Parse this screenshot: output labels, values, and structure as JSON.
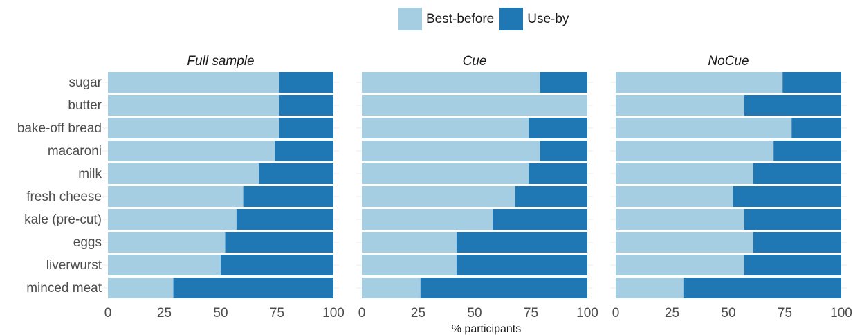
{
  "chart_data": {
    "type": "bar",
    "stacked": true,
    "orientation": "horizontal",
    "xlabel": "% participants",
    "xlim": [
      0,
      100
    ],
    "xticks": [
      "0",
      "25",
      "50",
      "75",
      "100"
    ],
    "legend": {
      "placement": "top",
      "entries": [
        {
          "name": "Best-before",
          "color": "#a6cee3"
        },
        {
          "name": "Use-by",
          "color": "#1f78b4"
        }
      ]
    },
    "categories": [
      "sugar",
      "butter",
      "bake-off bread",
      "macaroni",
      "milk",
      "fresh cheese",
      "kale (pre-cut)",
      "eggs",
      "liverwurst",
      "minced meat"
    ],
    "panels": [
      {
        "title": "Full sample",
        "series": [
          {
            "name": "Best-before",
            "values": [
              76,
              76,
              76,
              74,
              67,
              60,
              57,
              52,
              50,
              29
            ]
          },
          {
            "name": "Use-by",
            "values": [
              24,
              24,
              24,
              26,
              33,
              40,
              43,
              48,
              50,
              71
            ]
          }
        ]
      },
      {
        "title": "Cue",
        "series": [
          {
            "name": "Best-before",
            "values": [
              79,
              100,
              74,
              79,
              74,
              68,
              58,
              42,
              42,
              26
            ]
          },
          {
            "name": "Use-by",
            "values": [
              21,
              0,
              26,
              21,
              26,
              32,
              42,
              58,
              58,
              74
            ]
          }
        ]
      },
      {
        "title": "NoCue",
        "series": [
          {
            "name": "Best-before",
            "values": [
              74,
              57,
              78,
              70,
              61,
              52,
              57,
              61,
              57,
              30
            ]
          },
          {
            "name": "Use-by",
            "values": [
              26,
              43,
              22,
              30,
              39,
              48,
              43,
              39,
              43,
              70
            ]
          }
        ]
      }
    ]
  }
}
